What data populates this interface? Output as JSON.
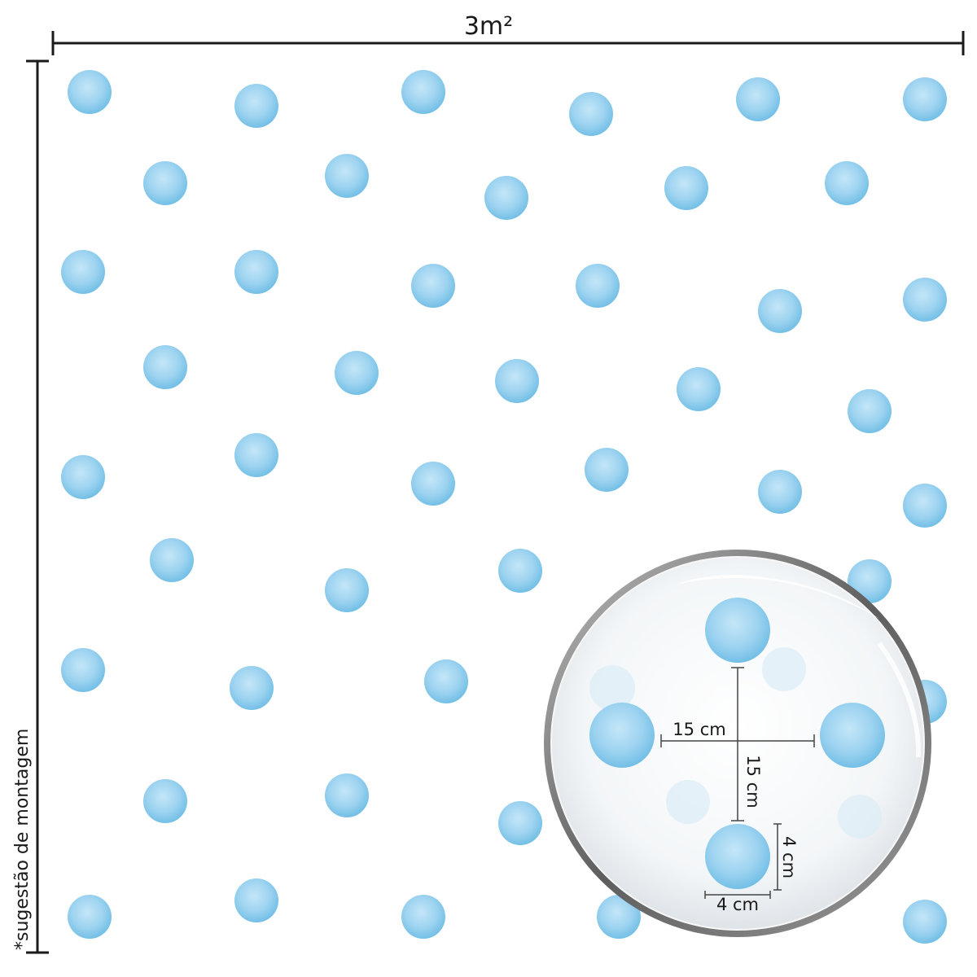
{
  "width_label": "3m²",
  "side_label": "*sugestão de montagem",
  "zoom": {
    "horizontal_spacing": "15 cm",
    "vertical_spacing": "15 cm",
    "dot_height": "4 cm",
    "dot_width": "4 cm"
  },
  "colors": {
    "dot_light": "#c4e6f8",
    "dot_mid": "#9dd3f0",
    "dot_dark": "#6bbbe4",
    "line": "#1a1a1a",
    "lens_rim": "#6f6f6f"
  }
}
